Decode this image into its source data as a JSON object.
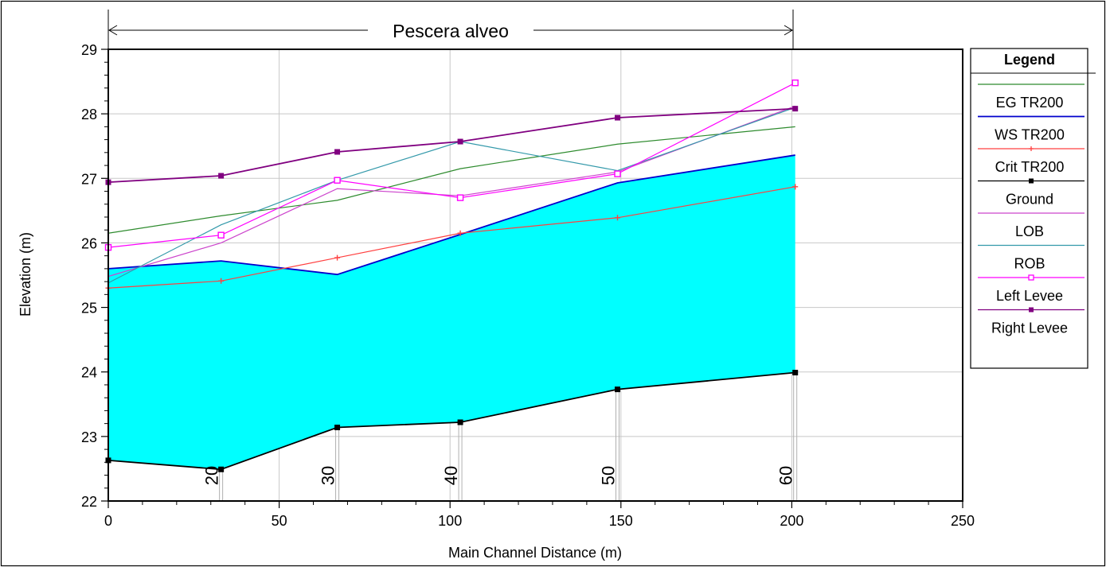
{
  "chart_data": {
    "type": "line",
    "title": "",
    "reach_label": "Pescera alveo",
    "xlabel": "Main Channel Distance (m)",
    "ylabel": "Elevation (m)",
    "xlim": [
      0,
      250
    ],
    "ylim": [
      22,
      29
    ],
    "x_ticks": [
      "0",
      "50",
      "100",
      "150",
      "200",
      "250"
    ],
    "y_ticks": [
      "22",
      "23",
      "24",
      "25",
      "26",
      "27",
      "28",
      "29"
    ],
    "grid": true,
    "legend_position": "right",
    "legend_title": "Legend",
    "stations": [
      {
        "x": 33,
        "label": "20"
      },
      {
        "x": 67,
        "label": "30"
      },
      {
        "x": 103,
        "label": "40"
      },
      {
        "x": 149,
        "label": "50"
      },
      {
        "x": 201,
        "label": "60"
      }
    ],
    "x": [
      0,
      33,
      67,
      103,
      149,
      201
    ],
    "series": [
      {
        "name": "EG  TR200",
        "color": "#2e8b2e",
        "marker": "none",
        "values": [
          26.15,
          26.42,
          26.66,
          27.15,
          27.53,
          27.8
        ]
      },
      {
        "name": "WS  TR200",
        "color": "#0000cc",
        "marker": "none",
        "fill": "#00ffff",
        "values": [
          25.6,
          25.72,
          25.51,
          26.13,
          26.93,
          27.36
        ]
      },
      {
        "name": "Crit  TR200",
        "color": "#ff4040",
        "marker": "plus",
        "values": [
          25.3,
          25.41,
          25.77,
          26.15,
          26.39,
          26.87
        ]
      },
      {
        "name": "Ground",
        "color": "#000000",
        "marker": "square",
        "values": [
          22.63,
          22.49,
          23.14,
          23.22,
          23.73,
          23.99
        ]
      },
      {
        "name": "LOB",
        "color": "#cc44cc",
        "marker": "none",
        "values": [
          25.48,
          26.0,
          26.84,
          26.73,
          27.1,
          28.12
        ]
      },
      {
        "name": "ROB",
        "color": "#3399aa",
        "marker": "none",
        "values": [
          25.38,
          26.28,
          26.97,
          27.57,
          27.12,
          28.1
        ]
      },
      {
        "name": "Left Levee",
        "color": "#ff00ff",
        "marker": "open-square",
        "values": [
          25.93,
          26.12,
          26.97,
          26.7,
          27.07,
          28.48
        ]
      },
      {
        "name": "Right Levee",
        "color": "#800080",
        "marker": "square",
        "values": [
          26.94,
          27.04,
          27.41,
          27.57,
          27.94,
          28.08
        ]
      }
    ]
  }
}
